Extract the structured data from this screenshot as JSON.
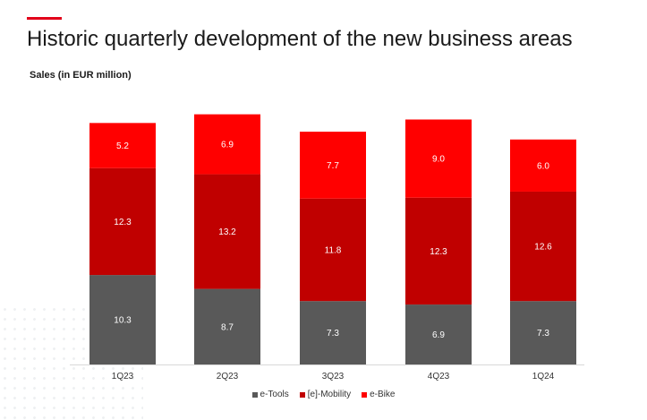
{
  "header": {
    "title": "Historic quarterly development of the new business areas"
  },
  "chart_data": {
    "type": "bar",
    "stacked": true,
    "title": "Historic quarterly development of the new business areas",
    "subtitle": "Sales (in EUR million)",
    "xlabel": "",
    "ylabel": "",
    "categories": [
      "1Q23",
      "2Q23",
      "3Q23",
      "4Q23",
      "1Q24"
    ],
    "series": [
      {
        "name": "e-Tools",
        "values": [
          10.3,
          8.7,
          7.3,
          6.9,
          7.3
        ],
        "color": "#595959",
        "labels": [
          "10.3",
          "8.7",
          "7.3",
          "6.9",
          "7.3"
        ]
      },
      {
        "name": "[e]-Mobility",
        "values": [
          12.3,
          13.2,
          11.8,
          12.3,
          12.6
        ],
        "color": "#c00000",
        "labels": [
          "12.3",
          "13.2",
          "11.8",
          "12.3",
          "12.6"
        ]
      },
      {
        "name": "e-Bike",
        "values": [
          5.2,
          6.9,
          7.7,
          9.0,
          6.0
        ],
        "color": "#ff0000",
        "labels": [
          "5.2",
          "6.9",
          "7.7",
          "9.0",
          "6.0"
        ]
      }
    ],
    "ylim": [
      0,
      30
    ],
    "grid": false,
    "legend": "bottom"
  }
}
